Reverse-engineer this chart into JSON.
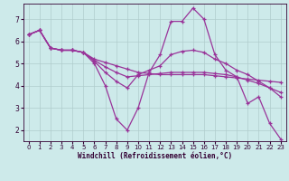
{
  "background_color": "#cdeaea",
  "grid_color": "#b0cccc",
  "line_color": "#993399",
  "xlabel": "Windchill (Refroidissement éolien,°C)",
  "xlim": [
    -0.5,
    23.5
  ],
  "ylim": [
    1.5,
    7.7
  ],
  "yticks": [
    2,
    3,
    4,
    5,
    6,
    7
  ],
  "xticks": [
    0,
    1,
    2,
    3,
    4,
    5,
    6,
    7,
    8,
    9,
    10,
    11,
    12,
    13,
    14,
    15,
    16,
    17,
    18,
    19,
    20,
    21,
    22,
    23
  ],
  "series": [
    {
      "x": [
        0,
        1,
        2,
        3,
        4,
        5,
        6,
        7,
        8,
        9,
        10,
        11,
        12,
        13,
        14,
        15,
        16,
        17,
        18,
        19,
        20,
        21,
        22,
        23
      ],
      "y": [
        6.3,
        6.5,
        5.7,
        5.6,
        5.6,
        5.5,
        5.0,
        4.0,
        2.5,
        2.0,
        3.0,
        4.6,
        5.4,
        6.9,
        6.9,
        7.5,
        7.0,
        5.4,
        4.7,
        4.4,
        3.2,
        3.5,
        2.3,
        1.6
      ]
    },
    {
      "x": [
        0,
        1,
        2,
        3,
        4,
        5,
        6,
        7,
        8,
        9,
        10,
        11,
        12,
        13,
        14,
        15,
        16,
        17,
        18,
        19,
        20,
        21,
        22,
        23
      ],
      "y": [
        6.3,
        6.5,
        5.7,
        5.6,
        5.6,
        5.5,
        5.2,
        5.05,
        4.9,
        4.75,
        4.6,
        4.55,
        4.5,
        4.5,
        4.5,
        4.5,
        4.5,
        4.45,
        4.4,
        4.35,
        4.3,
        4.25,
        4.2,
        4.15
      ]
    },
    {
      "x": [
        0,
        1,
        2,
        3,
        4,
        5,
        6,
        7,
        8,
        9,
        10,
        11,
        12,
        13,
        14,
        15,
        16,
        17,
        18,
        19,
        20,
        21,
        22,
        23
      ],
      "y": [
        6.3,
        6.5,
        5.7,
        5.6,
        5.6,
        5.5,
        5.15,
        4.85,
        4.6,
        4.4,
        4.45,
        4.5,
        4.55,
        4.6,
        4.6,
        4.6,
        4.6,
        4.55,
        4.5,
        4.4,
        4.25,
        4.1,
        3.9,
        3.7
      ]
    },
    {
      "x": [
        0,
        1,
        2,
        3,
        4,
        5,
        6,
        7,
        8,
        9,
        10,
        11,
        12,
        13,
        14,
        15,
        16,
        17,
        18,
        19,
        20,
        21,
        22,
        23
      ],
      "y": [
        6.3,
        6.5,
        5.7,
        5.6,
        5.6,
        5.5,
        5.1,
        4.6,
        4.2,
        3.9,
        4.5,
        4.7,
        4.9,
        5.4,
        5.55,
        5.6,
        5.5,
        5.2,
        5.0,
        4.7,
        4.5,
        4.2,
        3.9,
        3.5
      ]
    }
  ]
}
